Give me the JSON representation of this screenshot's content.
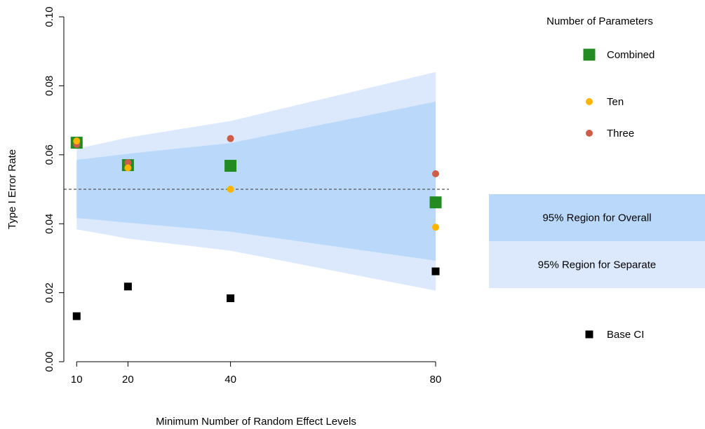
{
  "chart_data": {
    "type": "scatter",
    "xlabel": "Minimum Number of Random Effect Levels",
    "ylabel": "Type I Error Rate",
    "x_ticks": [
      10,
      20,
      40,
      80
    ],
    "y_ticks": [
      "0.00",
      "0.02",
      "0.04",
      "0.06",
      "0.08",
      "0.10"
    ],
    "xlim": [
      7.5,
      82.6
    ],
    "ylim": [
      0,
      0.1
    ],
    "reference_line": {
      "y": 0.05,
      "style": "dashed"
    },
    "bands": [
      {
        "name": "95% Region for Separate",
        "color": "#dce9fc",
        "x": [
          10,
          20,
          40,
          80
        ],
        "lower": [
          0.0384,
          0.0357,
          0.0322,
          0.0206
        ],
        "upper": [
          0.0617,
          0.065,
          0.0698,
          0.084
        ]
      },
      {
        "name": "95% Region for Overall",
        "color": "#bad9fa",
        "x": [
          10,
          20,
          40,
          80
        ],
        "lower": [
          0.0417,
          0.0403,
          0.0377,
          0.0293
        ],
        "upper": [
          0.0585,
          0.0603,
          0.0634,
          0.0754
        ]
      }
    ],
    "series": [
      {
        "name": "Combined",
        "marker": "square",
        "color": "#228b22",
        "size": 17,
        "x": [
          10,
          20,
          40,
          80
        ],
        "y": [
          0.0635,
          0.057,
          0.0568,
          0.0462
        ]
      },
      {
        "name": "Ten",
        "marker": "circle",
        "color": "#ffb400",
        "size": 10,
        "x": [
          10,
          20,
          40,
          80
        ],
        "y": [
          0.064,
          0.0562,
          0.05,
          0.039
        ]
      },
      {
        "name": "Three",
        "marker": "circle",
        "color": "#cd5c49",
        "size": 10,
        "x": [
          10,
          20,
          40,
          80
        ],
        "y": [
          0.063,
          0.0577,
          0.0647,
          0.0545
        ]
      },
      {
        "name": "Base CI",
        "marker": "square",
        "color": "#000000",
        "size": 11,
        "x": [
          10,
          20,
          40,
          80
        ],
        "y": [
          0.0132,
          0.0218,
          0.0184,
          0.0262
        ]
      }
    ],
    "legend": {
      "title": "Number of Parameters",
      "placement": "right",
      "items": [
        "Combined",
        "Ten",
        "Three"
      ],
      "band_items": [
        "95% Region for Overall",
        "95% Region for Separate"
      ],
      "extra_items": [
        "Base CI"
      ]
    }
  }
}
